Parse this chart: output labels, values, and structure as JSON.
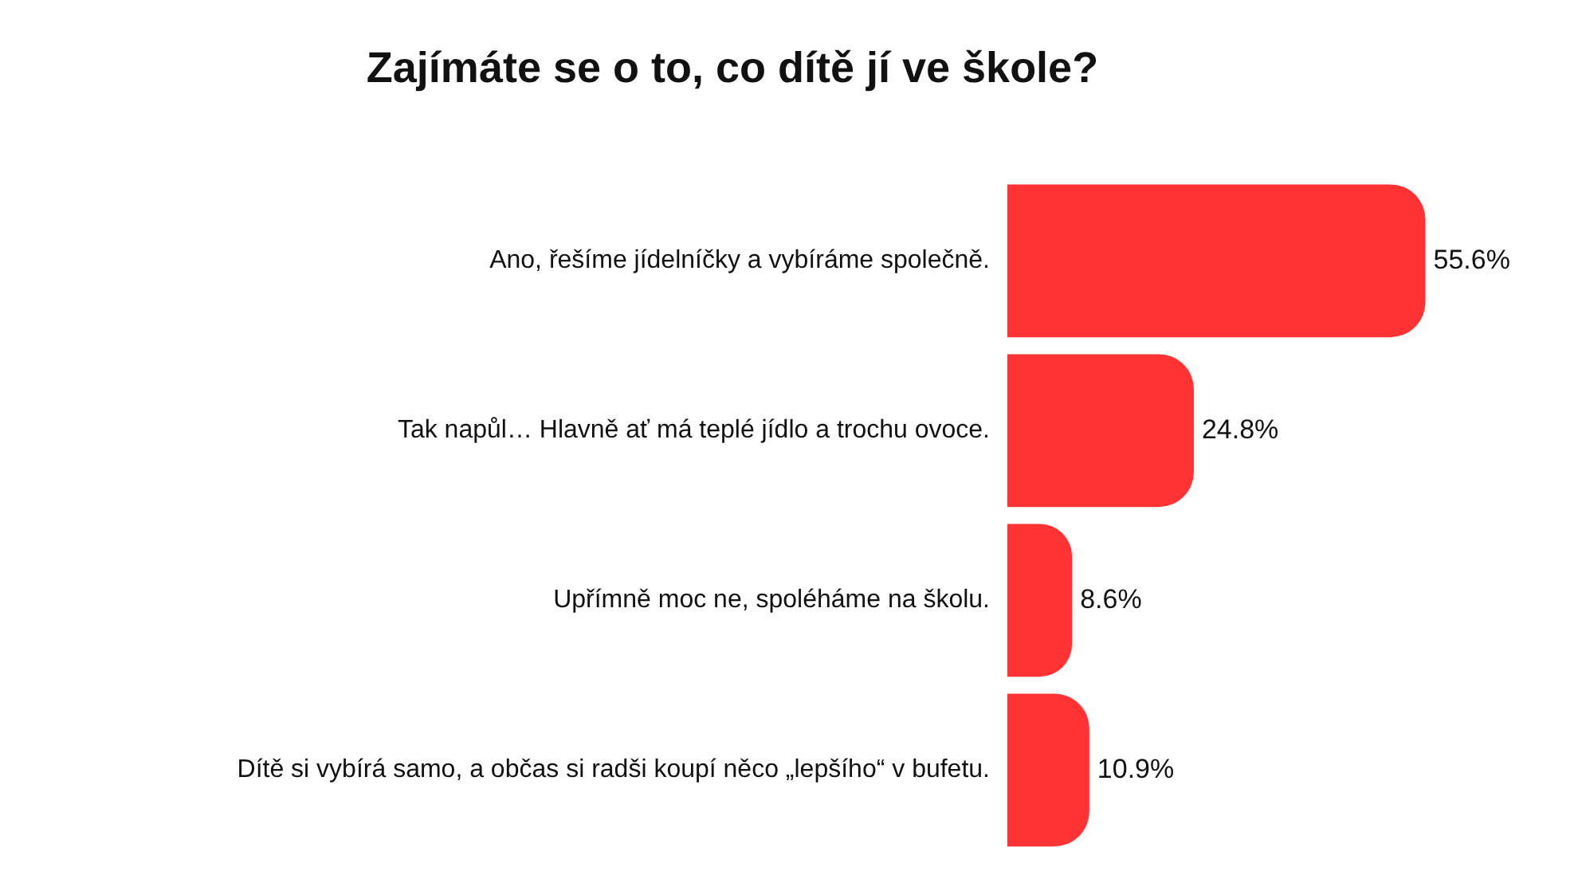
{
  "chart_data": {
    "type": "bar",
    "orientation": "horizontal",
    "title": "Zajímáte se o to, co dítě jí ve škole?",
    "categories": [
      "Ano, řešíme jídelníčky a vybíráme společně.",
      "Tak napůl… Hlavně ať má teplé jídlo a trochu ovoce.",
      "Upřímně moc ne, spoléháme na školu.",
      "Dítě si vybírá samo, a občas si radši koupí něco „lepšího“ v bufetu."
    ],
    "values": [
      55.6,
      24.8,
      8.6,
      10.9
    ],
    "value_labels": [
      "55.6%",
      "24.8%",
      "8.6%",
      "10.9%"
    ],
    "color": "#ff3333"
  }
}
